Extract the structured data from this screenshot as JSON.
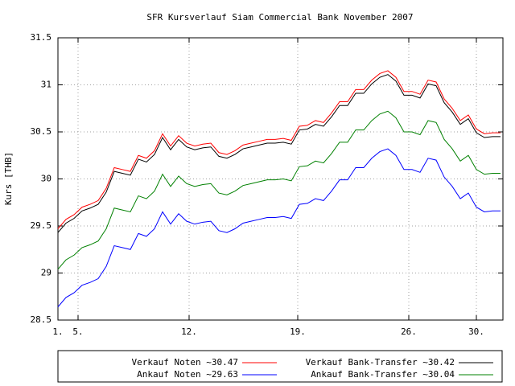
{
  "chart_data": {
    "type": "line",
    "title": "SFR Kursverlauf Siam Commercial Bank November 2007",
    "ylabel": "Kurs [THB]",
    "x": [
      0,
      1,
      2,
      3,
      4,
      5,
      6,
      7,
      8,
      9,
      10,
      11,
      12,
      13,
      14,
      15,
      16,
      17,
      18,
      19,
      20,
      21,
      22,
      23,
      24,
      25,
      26,
      27,
      28,
      29,
      30,
      31,
      32,
      33,
      34,
      35,
      36,
      37,
      38,
      39,
      40,
      41,
      42,
      43,
      44,
      45,
      46,
      47,
      48,
      49,
      50,
      51,
      52,
      53,
      54,
      55
    ],
    "xlim": [
      0,
      55.3
    ],
    "xticks": [
      {
        "value": 0,
        "label": "1."
      },
      {
        "value": 2.5,
        "label": "5."
      },
      {
        "value": 16.3,
        "label": "12."
      },
      {
        "value": 29.8,
        "label": "19."
      },
      {
        "value": 43.6,
        "label": "26."
      },
      {
        "value": 52,
        "label": "30."
      }
    ],
    "ylim": [
      28.5,
      31.5
    ],
    "yticks": [
      28.5,
      29,
      29.5,
      30,
      30.5,
      31,
      31.5
    ],
    "grid": true,
    "series": [
      {
        "name": "Verkauf Noten ~30.47",
        "color": "#ff0000",
        "values": [
          29.47,
          29.57,
          29.62,
          29.7,
          29.73,
          29.77,
          29.9,
          30.12,
          30.1,
          30.08,
          30.25,
          30.22,
          30.3,
          30.48,
          30.35,
          30.46,
          30.38,
          30.35,
          30.37,
          30.38,
          30.28,
          30.26,
          30.3,
          30.36,
          30.38,
          30.4,
          30.42,
          30.42,
          30.43,
          30.41,
          30.56,
          30.57,
          30.62,
          30.6,
          30.7,
          30.82,
          30.82,
          30.95,
          30.95,
          31.05,
          31.12,
          31.15,
          31.08,
          30.93,
          30.93,
          30.9,
          31.05,
          31.03,
          30.85,
          30.75,
          30.62,
          30.68,
          30.53,
          30.48,
          30.49,
          30.49
        ]
      },
      {
        "name": "Verkauf Bank-Transfer ~30.42",
        "color": "#000000",
        "values": [
          29.43,
          29.53,
          29.58,
          29.66,
          29.69,
          29.73,
          29.86,
          30.08,
          30.06,
          30.04,
          30.21,
          30.18,
          30.26,
          30.44,
          30.31,
          30.42,
          30.34,
          30.31,
          30.33,
          30.34,
          30.24,
          30.22,
          30.26,
          30.32,
          30.34,
          30.36,
          30.38,
          30.38,
          30.39,
          30.37,
          30.52,
          30.53,
          30.58,
          30.56,
          30.66,
          30.78,
          30.78,
          30.91,
          30.91,
          31.01,
          31.08,
          31.11,
          31.04,
          30.89,
          30.89,
          30.86,
          31.01,
          30.99,
          30.81,
          30.71,
          30.58,
          30.64,
          30.49,
          30.44,
          30.45,
          30.45
        ]
      },
      {
        "name": "Ankauf Noten ~29.63",
        "color": "#0000ff",
        "values": [
          28.64,
          28.74,
          28.79,
          28.87,
          28.9,
          28.94,
          29.07,
          29.29,
          29.27,
          29.25,
          29.42,
          29.39,
          29.47,
          29.65,
          29.52,
          29.63,
          29.55,
          29.52,
          29.54,
          29.55,
          29.45,
          29.43,
          29.47,
          29.53,
          29.55,
          29.57,
          29.59,
          29.59,
          29.6,
          29.58,
          29.73,
          29.74,
          29.79,
          29.77,
          29.87,
          29.99,
          29.99,
          30.12,
          30.12,
          30.22,
          30.29,
          30.32,
          30.25,
          30.1,
          30.1,
          30.07,
          30.22,
          30.2,
          30.02,
          29.92,
          29.79,
          29.85,
          29.7,
          29.65,
          29.66,
          29.66
        ]
      },
      {
        "name": "Ankauf Bank-Transfer ~30.04",
        "color": "#008000",
        "values": [
          29.04,
          29.14,
          29.19,
          29.27,
          29.3,
          29.34,
          29.47,
          29.69,
          29.67,
          29.65,
          29.82,
          29.79,
          29.87,
          30.05,
          29.92,
          30.03,
          29.95,
          29.92,
          29.94,
          29.95,
          29.85,
          29.83,
          29.87,
          29.93,
          29.95,
          29.97,
          29.99,
          29.99,
          30.0,
          29.98,
          30.13,
          30.14,
          30.19,
          30.17,
          30.27,
          30.39,
          30.39,
          30.52,
          30.52,
          30.62,
          30.69,
          30.72,
          30.65,
          30.5,
          30.5,
          30.47,
          30.62,
          30.6,
          30.42,
          30.32,
          30.19,
          30.25,
          30.1,
          30.05,
          30.06,
          30.06
        ]
      }
    ]
  }
}
